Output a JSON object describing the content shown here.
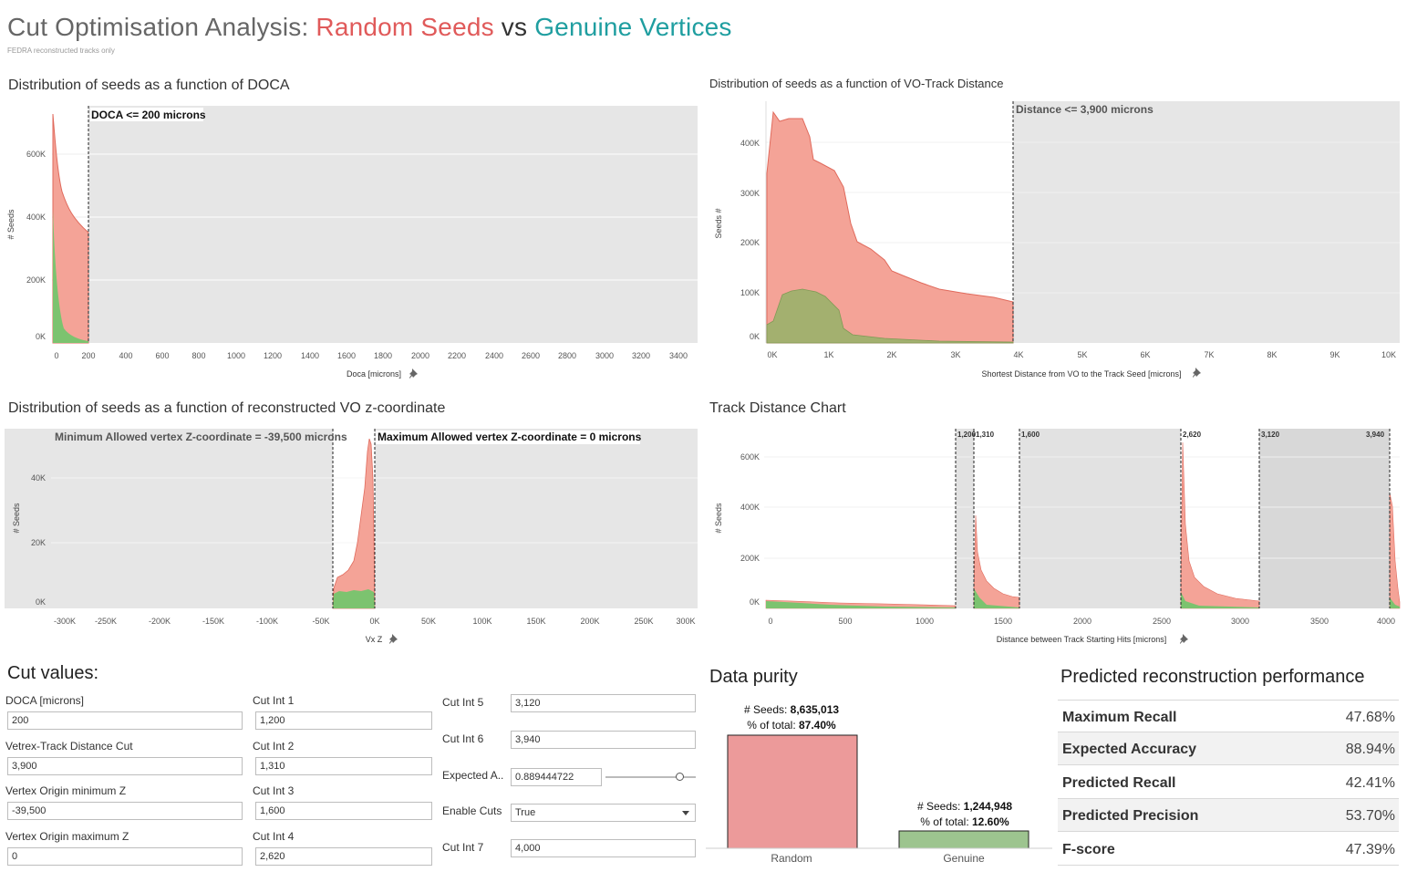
{
  "header": {
    "title_prefix": "Cut Optimisation Analysis: ",
    "title_random": "Random Seeds",
    "title_vs": " vs ",
    "title_genuine": "Genuine Vertices",
    "subtitle": "FEDRA reconstructed tracks only"
  },
  "colors": {
    "random": "#f4a397",
    "random_line": "#e06a5c",
    "genuine": "#7cc36f",
    "genuine_bar": "#9dc48f",
    "random_bar": "#ec9a9a",
    "excluded": "#e6e6e6",
    "title_red": "#e05a5a",
    "title_teal": "#1f9ea0"
  },
  "charts": {
    "doca": {
      "title": "Distribution of seeds as a function of DOCA",
      "ylabel": "# Seeds",
      "xlabel": "Doca [microns]",
      "cut_label": "DOCA <= 200 microns",
      "x_ticks": [
        "0",
        "200",
        "400",
        "600",
        "800",
        "1000",
        "1200",
        "1400",
        "1600",
        "1800",
        "2000",
        "2200",
        "2400",
        "2600",
        "2800",
        "3000",
        "3200",
        "3400"
      ],
      "y_ticks": [
        "0K",
        "200K",
        "400K",
        "600K"
      ]
    },
    "distance": {
      "title": "Distribution of seeds as a function of VO-Track Distance",
      "ylabel": "Seeds #",
      "xlabel": "Shortest Distance from VO to the Track Seed [microns]",
      "cut_label": "Distance <= 3,900 microns",
      "x_ticks": [
        "0K",
        "1K",
        "2K",
        "3K",
        "4K",
        "5K",
        "6K",
        "7K",
        "8K",
        "9K",
        "10K"
      ],
      "y_ticks": [
        "0K",
        "100K",
        "200K",
        "300K",
        "400K"
      ]
    },
    "vz": {
      "title": "Distribution of seeds as a function of reconstructed VO z-coordinate",
      "ylabel": "# Seeds",
      "xlabel": "Vx Z",
      "min_label": "Minimum Allowed vertex Z-coordinate = -39,500 microns",
      "max_label": "Maximum Allowed vertex Z-coordinate = 0 microns",
      "x_ticks": [
        "-300K",
        "-250K",
        "-200K",
        "-150K",
        "-100K",
        "-50K",
        "0K",
        "50K",
        "100K",
        "150K",
        "200K",
        "250K",
        "300K"
      ],
      "y_ticks": [
        "0K",
        "20K",
        "40K"
      ]
    },
    "track": {
      "title": "Track Distance Chart",
      "ylabel": "# Seeds",
      "xlabel": "Distance between Track Starting Hits [microns]",
      "cut_labels": [
        "1,200",
        "1,310",
        "1,600",
        "2,620",
        "3,120",
        "3,940"
      ],
      "x_ticks": [
        "0",
        "500",
        "1000",
        "1500",
        "2000",
        "2500",
        "3000",
        "3500",
        "4000"
      ],
      "y_ticks": [
        "0K",
        "200K",
        "400K",
        "600K"
      ]
    }
  },
  "cuts": {
    "title": "Cut values:",
    "doca_label": "DOCA [microns]",
    "doca_value": "200",
    "vtd_label": "Vetrex-Track Distance Cut",
    "vtd_value": "3,900",
    "vomin_label": "Vertex Origin minimum Z",
    "vomin_value": "-39,500",
    "vomax_label": "Vertex Origin maximum Z",
    "vomax_value": "0",
    "c1_label": "Cut Int 1",
    "c1_value": "1,200",
    "c2_label": "Cut Int 2",
    "c2_value": "1,310",
    "c3_label": "Cut Int 3",
    "c3_value": "1,600",
    "c4_label": "Cut Int 4",
    "c4_value": "2,620",
    "c5_label": "Cut Int 5",
    "c5_value": "3,120",
    "c6_label": "Cut Int 6",
    "c6_value": "3,940",
    "ea_label": "Expected A..",
    "ea_value": "0.889444722",
    "ea_slider": 0.86,
    "enable_label": "Enable Cuts",
    "enable_value": "True",
    "c7_label": "Cut Int 7",
    "c7_value": "4,000"
  },
  "purity": {
    "title": "Data purity",
    "random_seeds_label": "# Seeds: ",
    "random_seeds": "8,635,013",
    "random_pct_label": "% of total: ",
    "random_pct": "87.40%",
    "genuine_seeds_label": "# Seeds: ",
    "genuine_seeds": "1,244,948",
    "genuine_pct_label": "% of total: ",
    "genuine_pct": "12.60%",
    "random_cat": "Random",
    "genuine_cat": "Genuine"
  },
  "chart_data": {
    "type": "bar",
    "categories": [
      "Random",
      "Genuine"
    ],
    "values": [
      8635013,
      1244948
    ],
    "title": "Data purity"
  },
  "performance": {
    "title": "Predicted reconstruction performance",
    "rows": [
      {
        "label": "Maximum Recall",
        "value": "47.68%"
      },
      {
        "label": "Expected Accuracy",
        "value": "88.94%"
      },
      {
        "label": "Predicted Recall",
        "value": "42.41%"
      },
      {
        "label": "Predicted Precision",
        "value": "53.70%"
      },
      {
        "label": "F-score",
        "value": "47.39%"
      }
    ]
  }
}
